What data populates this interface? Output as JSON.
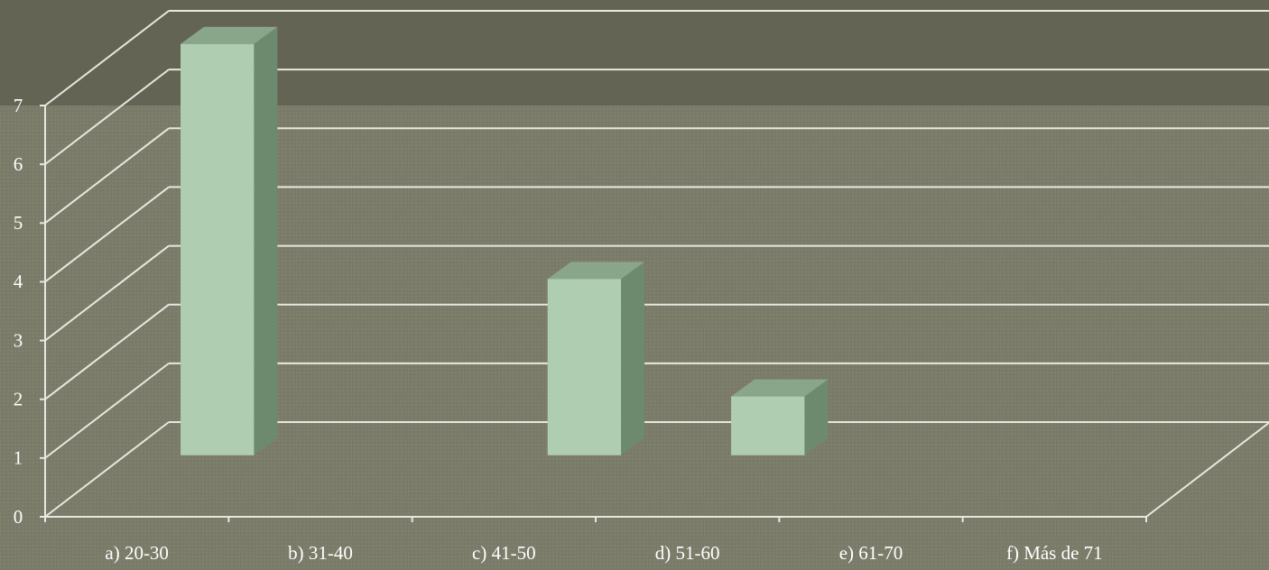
{
  "chart_data": {
    "type": "bar",
    "categories": [
      "a)  20-30",
      "b)  31-40",
      "c)  41-50",
      "d)  51-60",
      "e)  61-70",
      "f)  Más de 71"
    ],
    "values": [
      7,
      0,
      3,
      1,
      0,
      0
    ],
    "color": "#afcdb0",
    "ylim": [
      0,
      7
    ],
    "yticks": [
      0,
      1,
      2,
      3,
      4,
      5,
      6,
      7
    ],
    "grid": true
  }
}
